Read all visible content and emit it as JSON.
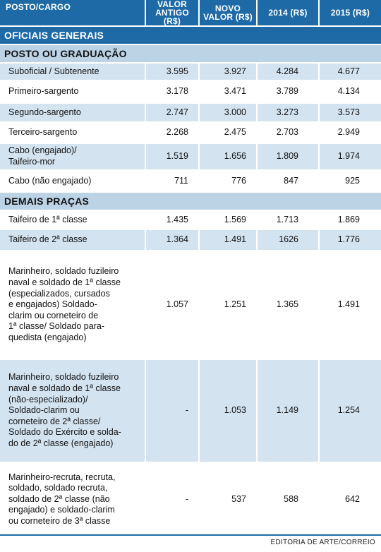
{
  "header": {
    "col0": "POSTO/CARGO",
    "col1_line1": "VALOR",
    "col1_line2": "ANTIGO (R$)",
    "col2_line1": "NOVO",
    "col2_line2": "VALOR (R$)",
    "col3": "2014 (R$)",
    "col4": "2015 (R$)"
  },
  "sections": {
    "oficiais": "OFICIAIS GENERAIS",
    "posto": "POSTO OU GRADUAÇÃO",
    "demais": "DEMAIS PRAÇAS"
  },
  "rows": [
    {
      "label": "Suboficial / Subtenente",
      "antigo": "3.595",
      "novo": "3.927",
      "y2014": "4.284",
      "y2015": "4.677"
    },
    {
      "label": "Primeiro-sargento",
      "antigo": "3.178",
      "novo": "3.471",
      "y2014": "3.789",
      "y2015": "4.134"
    },
    {
      "label": "Segundo-sargento",
      "antigo": "2.747",
      "novo": "3.000",
      "y2014": "3.273",
      "y2015": "3.573"
    },
    {
      "label": "Terceiro-sargento",
      "antigo": "2.268",
      "novo": "2.475",
      "y2014": "2.703",
      "y2015": "2.949"
    },
    {
      "label_line1": "Cabo (engajado)/",
      "label_line2": "Taifeiro-mor",
      "antigo": "1.519",
      "novo": "1.656",
      "y2014": "1.809",
      "y2015": "1.974"
    },
    {
      "label": "Cabo (não engajado)",
      "antigo": "711",
      "novo": "776",
      "y2014": "847",
      "y2015": "925"
    },
    {
      "label": "Taifeiro de 1ª classe",
      "antigo": "1.435",
      "novo": "1.569",
      "y2014": "1.713",
      "y2015": "1.869"
    },
    {
      "label": "Taifeiro de 2ª classe",
      "antigo": "1.364",
      "novo": "1.491",
      "y2014": "1626",
      "y2015": "1.776"
    },
    {
      "label_lines": [
        "Marinheiro, soldado fuzileiro",
        "naval e soldado de 1ª classe",
        "(especializados, cursados",
        "e engajados) Soldado-",
        "clarim ou corneteiro de",
        "1ª classe/ Soldado para-",
        "quedista (engajado)"
      ],
      "antigo": "1.057",
      "novo": "1.251",
      "y2014": "1.365",
      "y2015": "1.491"
    },
    {
      "label_lines": [
        "Marinheiro, soldado fuzileiro",
        "naval e soldado de 1ª classe",
        "(não-especializado)/",
        "Soldado-clarim ou",
        "corneteiro de 2ª classe/",
        "Soldado do Exército e solda-",
        "do de 2ª classe (engajado)"
      ],
      "antigo": "-",
      "novo": "1.053",
      "y2014": "1.149",
      "y2015": "1.254"
    },
    {
      "label_lines": [
        "Marinheiro-recruta, recruta,",
        "soldado, soldado recruta,",
        "soldado de 2ª classe (não",
        "engajado) e soldado-clarim",
        "ou corneteiro de 3ª classe"
      ],
      "antigo": "-",
      "novo": "537",
      "y2014": "588",
      "y2015": "642"
    }
  ],
  "credit": "EDITORIA DE ARTE/CORREIO",
  "colors": {
    "header_blue": "#1d6aa6",
    "row_blue": "#d3e3f0",
    "section_light": "#bcd3e6"
  }
}
